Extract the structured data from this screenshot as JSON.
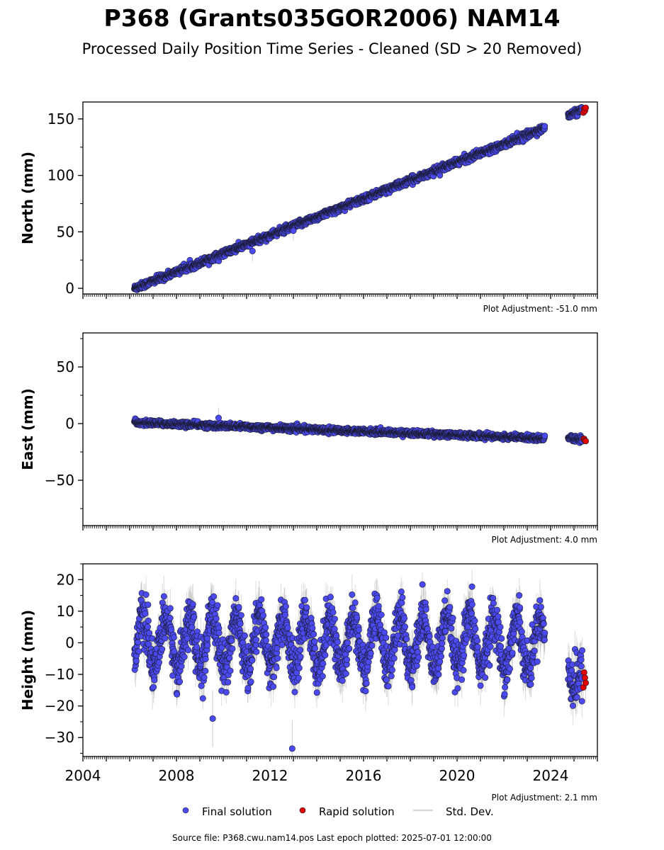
{
  "figure": {
    "title": "P368 (Grants035GOR2006) NAM14",
    "subtitle": "Processed Daily Position Time Series - Cleaned (SD > 20 Removed)",
    "source": "Source file: P368.cwu.nam14.pos  Last epoch plotted: 2025-07-01 12:00:00",
    "colors": {
      "final": "#4a4af0",
      "rapid": "#e00000",
      "stddev": "#999999"
    }
  },
  "legend": {
    "final": "Final solution",
    "rapid": "Rapid solution",
    "stddev": "Std. Dev."
  },
  "chart_data": [
    {
      "type": "scatter",
      "ylabel": "North (mm)",
      "ylim": [
        -5,
        165
      ],
      "xlim": [
        2004,
        2026
      ],
      "yticks": [
        0,
        50,
        100,
        150
      ],
      "xticks": [
        2004,
        2008,
        2012,
        2016,
        2020,
        2024
      ],
      "adjustment": "Plot Adjustment: -51.0 mm",
      "grid": false,
      "series": [
        {
          "name": "Final solution",
          "x_start": 2006.2,
          "x_end": 2023.75,
          "y_start": 0,
          "y_end": 142,
          "noise_sd": 1.5,
          "outliers": [
            [
              2011.25,
              33
            ],
            [
              2013.0,
              51
            ]
          ]
        },
        {
          "name": "Final solution",
          "x_start": 2024.75,
          "x_end": 2025.35,
          "y_start": 153,
          "y_end": 158,
          "noise_sd": 1.5
        },
        {
          "name": "Rapid solution",
          "x_start": 2025.4,
          "x_end": 2025.5,
          "y_start": 157.5,
          "y_end": 159,
          "noise_sd": 0.8
        }
      ]
    },
    {
      "type": "scatter",
      "ylabel": "East (mm)",
      "ylim": [
        -90,
        80
      ],
      "xlim": [
        2004,
        2026
      ],
      "yticks": [
        -50,
        0,
        50
      ],
      "xticks": [
        2004,
        2008,
        2012,
        2016,
        2020,
        2024
      ],
      "adjustment": "Plot Adjustment: 4.0 mm",
      "grid": false,
      "series": [
        {
          "name": "Final solution",
          "x_start": 2006.2,
          "x_end": 2023.75,
          "y_start": 1,
          "y_end": -13,
          "noise_sd": 1.2,
          "outliers": [
            [
              2009.8,
              5
            ]
          ]
        },
        {
          "name": "Final solution",
          "x_start": 2024.75,
          "x_end": 2025.35,
          "y_start": -12,
          "y_end": -14,
          "noise_sd": 1.2
        },
        {
          "name": "Rapid solution",
          "x_start": 2025.4,
          "x_end": 2025.5,
          "y_start": -14,
          "y_end": -15,
          "noise_sd": 0.6
        }
      ]
    },
    {
      "type": "scatter",
      "ylabel": "Height (mm)",
      "ylim": [
        -36,
        25
      ],
      "xlim": [
        2004,
        2026
      ],
      "yticks": [
        -30,
        -20,
        -10,
        0,
        10,
        20
      ],
      "xticks": [
        2004,
        2008,
        2012,
        2016,
        2020,
        2024
      ],
      "adjustment": "Plot Adjustment: 2.1 mm",
      "grid": false,
      "series": [
        {
          "name": "Final solution",
          "x_start": 2006.2,
          "x_end": 2023.75,
          "y_start": 0,
          "y_end": 0,
          "seasonal_amplitude": 8,
          "noise_sd": 3.5,
          "outliers": [
            [
              2009.55,
              -24
            ],
            [
              2012.95,
              -33.5
            ]
          ]
        },
        {
          "name": "Final solution",
          "x_start": 2024.75,
          "x_end": 2025.35,
          "y_start": -10,
          "y_end": -10,
          "seasonal_amplitude": 3,
          "noise_sd": 4
        },
        {
          "name": "Rapid solution",
          "x_start": 2025.4,
          "x_end": 2025.5,
          "y_start": -10,
          "y_end": -10,
          "noise_sd": 3
        }
      ]
    }
  ]
}
